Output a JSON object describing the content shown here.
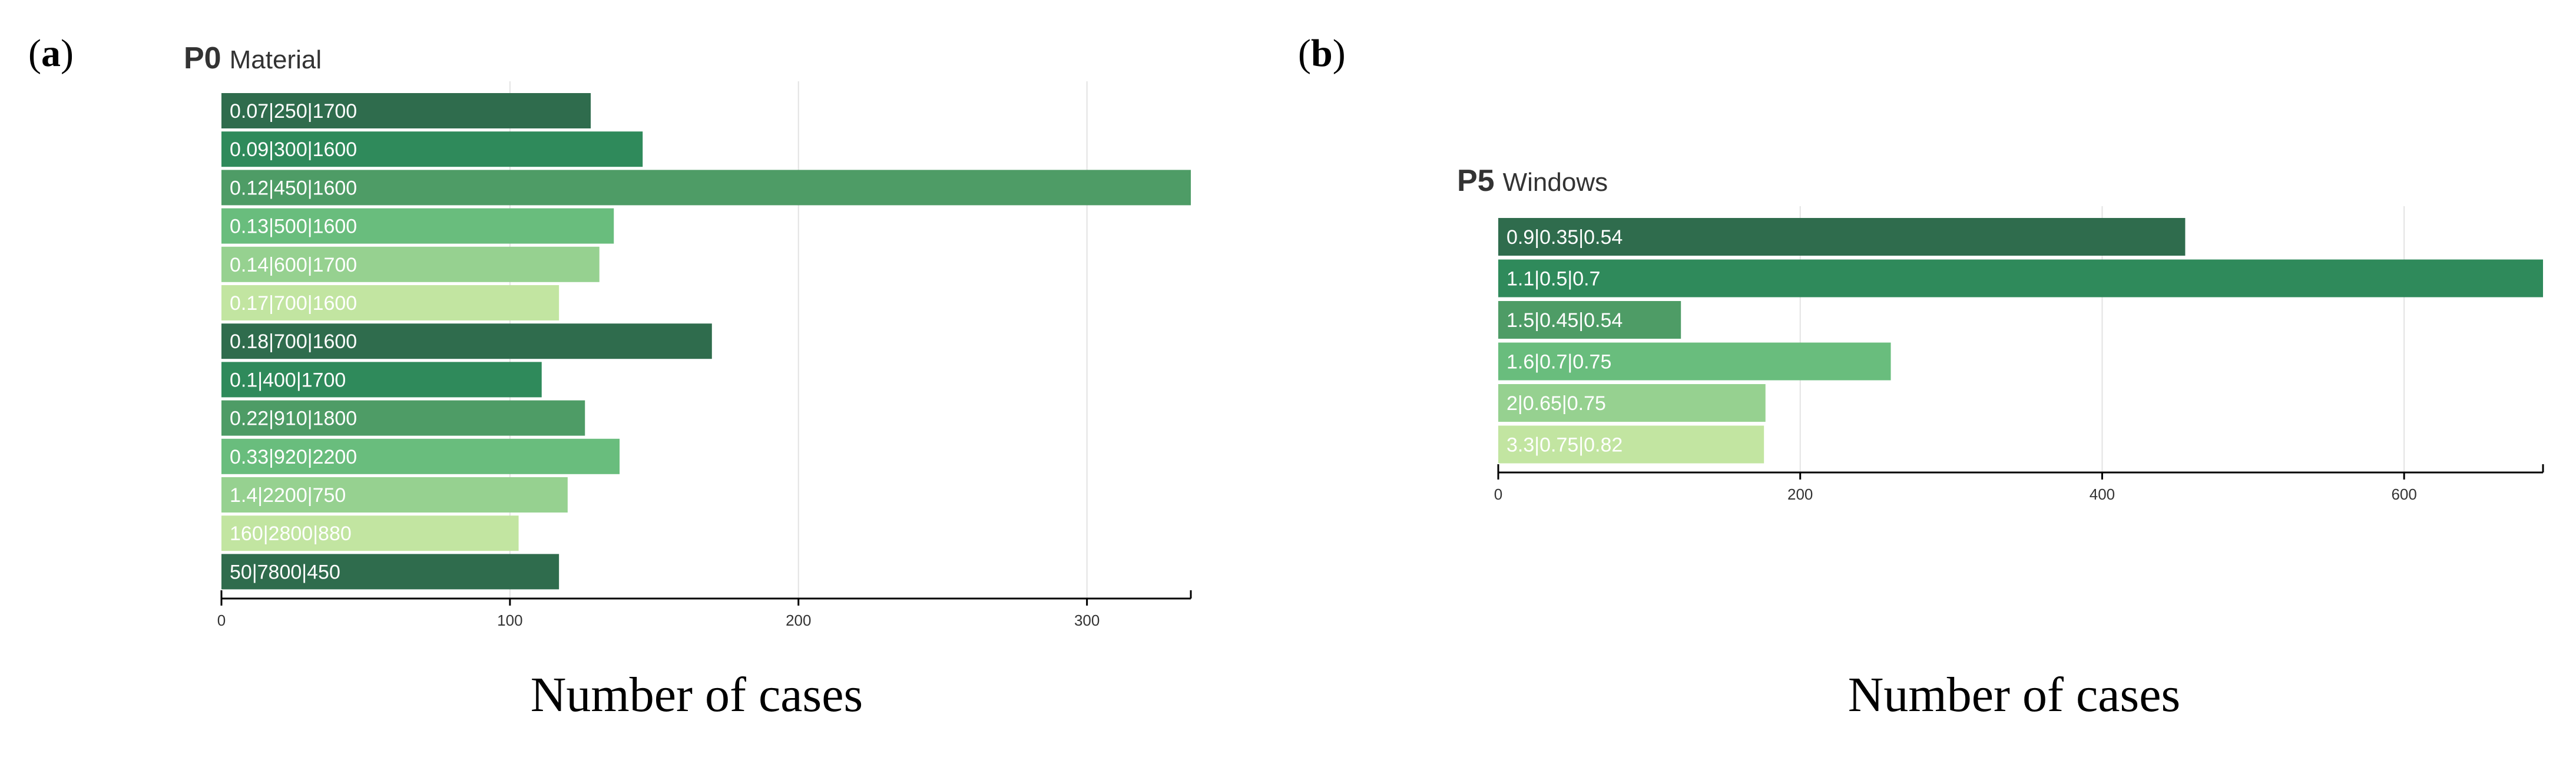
{
  "colors": {
    "shades": [
      "#2f6c4d",
      "#2f8a5b",
      "#4e9c66",
      "#69bd7d",
      "#96d190",
      "#c2e5a1"
    ]
  },
  "chart_data": [
    {
      "panel_label_open": "(",
      "panel_label_letter": "a",
      "panel_label_close": ")",
      "title_code": "P0",
      "title_name": "Material",
      "type": "bar",
      "orientation": "horizontal",
      "categories": [
        "0.07|250|1700",
        "0.09|300|1600",
        "0.12|450|1600",
        "0.13|500|1600",
        "0.14|600|1700",
        "0.17|700|1600",
        "0.18|700|1600",
        "0.1|400|1700",
        "0.22|910|1800",
        "0.33|920|2200",
        "1.4|2200|750",
        "160|2800|880",
        "50|7800|450"
      ],
      "values": [
        128,
        146,
        336,
        136,
        131,
        117,
        170,
        111,
        126,
        138,
        120,
        103,
        117
      ],
      "xlim": [
        0,
        336
      ],
      "ticks": [
        0,
        100,
        200,
        300
      ],
      "tick_labels": [
        "0",
        "100",
        "200",
        "300"
      ],
      "xlabel": "Number of cases",
      "grid": true
    },
    {
      "panel_label_open": "(",
      "panel_label_letter": "b",
      "panel_label_close": ")",
      "title_code": "P5",
      "title_name": "Windows",
      "type": "bar",
      "orientation": "horizontal",
      "categories": [
        "0.9|0.35|0.54",
        "1.1|0.5|0.7",
        "1.5|0.45|0.54",
        "1.6|0.7|0.75",
        "2|0.65|0.75",
        "3.3|0.75|0.82"
      ],
      "values": [
        455,
        692,
        121,
        260,
        177,
        176
      ],
      "xlim": [
        0,
        692
      ],
      "ticks": [
        0,
        200,
        400,
        600
      ],
      "tick_labels": [
        "0",
        "200",
        "400",
        "600"
      ],
      "xlabel": "Number of cases",
      "grid": true
    }
  ]
}
